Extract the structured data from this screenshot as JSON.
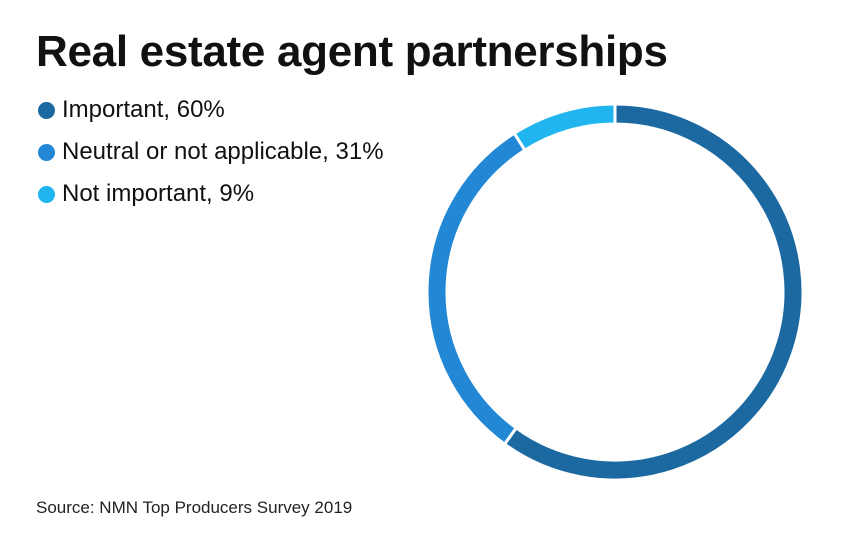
{
  "title": "Real estate agent partnerships",
  "source": "Source: NMN Top Producers Survey 2019",
  "chart_data": {
    "type": "pie",
    "variant": "donut",
    "title": "Real estate agent partnerships",
    "categories": [
      "Important",
      "Neutral or not applicable",
      "Not important"
    ],
    "values": [
      60,
      31,
      9
    ],
    "unit": "%",
    "colors": [
      "#1b69a0",
      "#2288d6",
      "#21b5f0"
    ],
    "legend_labels": [
      "Important, 60%",
      "Neutral or not applicable, 31%",
      "Not important, 9%"
    ],
    "legend_position": "top-left"
  }
}
